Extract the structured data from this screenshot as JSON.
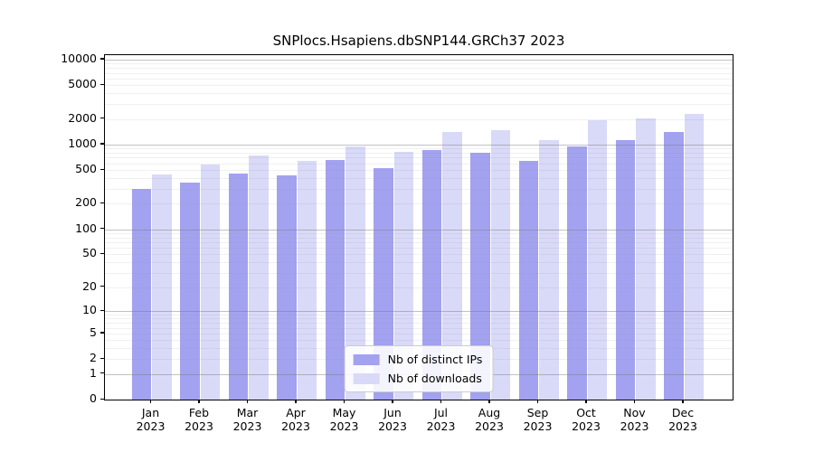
{
  "title": "SNPlocs.Hsapiens.dbSNP144.GRCh37 2023",
  "colors": {
    "distinct_ips": "#a2a2f0",
    "downloads": "#d9d9f8",
    "grid_major": "rgba(120,120,120,0.45)",
    "grid_minor": "rgba(150,150,150,0.14)",
    "axis": "#000000"
  },
  "legend": {
    "items": [
      {
        "label": "Nb of distinct IPs",
        "color_key": "distinct_ips"
      },
      {
        "label": "Nb of downloads",
        "color_key": "downloads"
      }
    ]
  },
  "chart_data": {
    "type": "bar",
    "title": "SNPlocs.Hsapiens.dbSNP144.GRCh37 2023",
    "categories": [
      "Jan 2023",
      "Feb 2023",
      "Mar 2023",
      "Apr 2023",
      "May 2023",
      "Jun 2023",
      "Jul 2023",
      "Aug 2023",
      "Sep 2023",
      "Oct 2023",
      "Nov 2023",
      "Dec 2023"
    ],
    "x_tick_months": [
      "Jan",
      "Feb",
      "Mar",
      "Apr",
      "May",
      "Jun",
      "Jul",
      "Aug",
      "Sep",
      "Oct",
      "Nov",
      "Dec"
    ],
    "x_tick_year": "2023",
    "series": [
      {
        "name": "Nb of distinct IPs",
        "values": [
          300,
          360,
          460,
          430,
          660,
          530,
          870,
          800,
          640,
          950,
          1130,
          1420
        ]
      },
      {
        "name": "Nb of downloads",
        "values": [
          440,
          580,
          750,
          640,
          960,
          820,
          1400,
          1480,
          1130,
          1950,
          2050,
          2320
        ]
      }
    ],
    "xlabel": "",
    "ylabel": "",
    "yscale": "log1p",
    "ylim": [
      0,
      11300
    ],
    "yticks": [
      0,
      1,
      2,
      5,
      10,
      20,
      50,
      100,
      200,
      500,
      1000,
      2000,
      5000,
      10000
    ],
    "grid": true,
    "grid_major_at": [
      1,
      10,
      100,
      1000,
      10000
    ],
    "legend_position": "lower center"
  }
}
